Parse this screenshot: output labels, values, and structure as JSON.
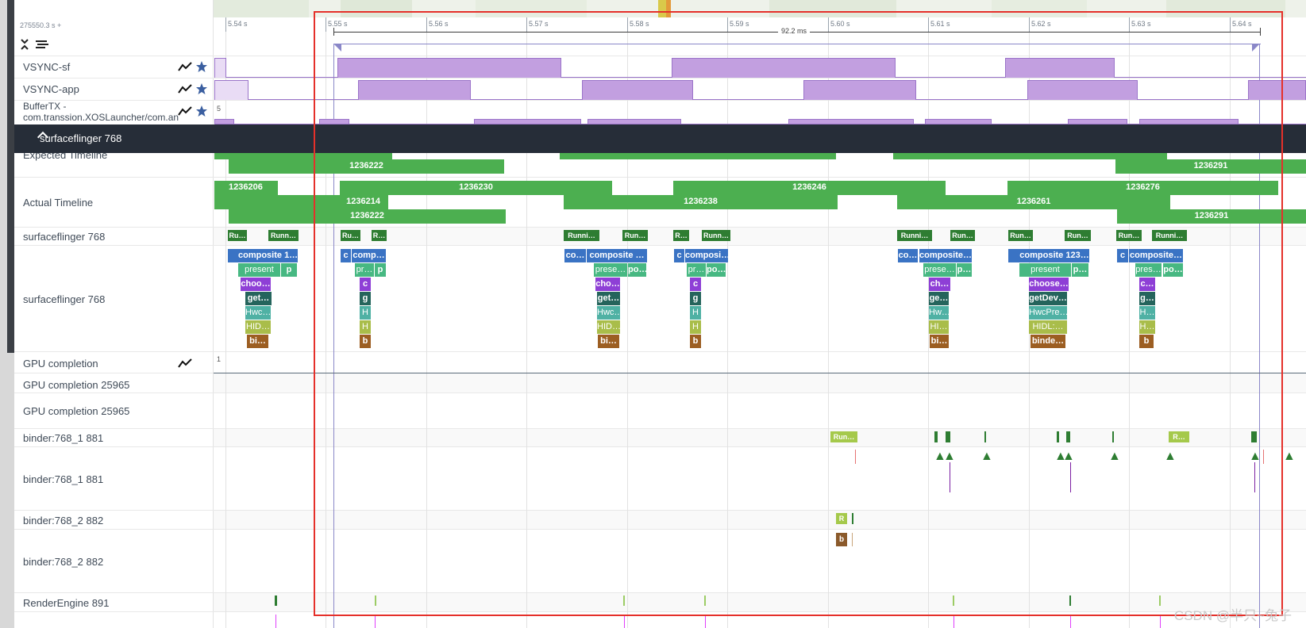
{
  "window": {
    "start_offset": "275550.3 s +",
    "selection_duration": "92.2 ms",
    "watermark": "CSDN @半只~兔子"
  },
  "timeline": {
    "ticks": [
      "5.54 s",
      "5.55 s",
      "5.56 s",
      "5.57 s",
      "5.58 s",
      "5.59 s",
      "5.60 s",
      "5.61 s",
      "5.62 s",
      "5.63 s",
      "5.64 s"
    ]
  },
  "colors": {
    "vsync": "#c29fe0",
    "frame_green": "#4caf50",
    "running_green": "#2e7d32",
    "selection_red": "#e5302a",
    "group_header": "#262d38"
  },
  "icons": {
    "collapse_all": "collapse-all-icon",
    "expand_lines": "lines-icon",
    "chart": "chart-line-icon",
    "pin": "star-icon",
    "group_toggle": "chevron-up-icon"
  },
  "tracks": {
    "vsync_sf": {
      "label": "VSYNC-sf",
      "counter_value": "1"
    },
    "vsync_app": {
      "label": "VSYNC-app",
      "counter_value": "1"
    },
    "buffer_tx": {
      "label_line1": "BufferTX -",
      "label_line2": "com.transsion.XOSLauncher/com.an",
      "counter_value": "5"
    },
    "group": {
      "label": "surfaceflinger 768"
    },
    "expected": {
      "label": "Expected Timeline",
      "frames": [
        "1236222",
        "1236291"
      ]
    },
    "actual": {
      "label": "Actual Timeline",
      "frames": [
        "1236206",
        "1236214",
        "1236222",
        "1236230",
        "1236238",
        "1236246",
        "1236261",
        "1236276",
        "1236291"
      ]
    },
    "sf_state": {
      "label": "surfaceflinger 768",
      "slices": [
        "Ru…",
        "Runn…",
        "Ru…",
        "R…",
        "Runni…",
        "Run…",
        "R…",
        "Runn…",
        "Runni…",
        "Run…",
        "Run…",
        "Run…",
        "Run…",
        "Runni…"
      ]
    },
    "sf_thread": {
      "label": "surfaceflinger 768",
      "stacks": [
        [
          "composite 1…",
          "present",
          "choo…",
          "get…",
          "Hwc…",
          "HID…",
          "bi…"
        ],
        [
          "comp…",
          "pr…",
          "c",
          "g",
          "H",
          "H",
          "b"
        ],
        [
          "composite …",
          "prese…",
          "cho…",
          "get…",
          "Hwc…",
          "HID…",
          "bi…"
        ],
        [
          "composi…",
          "pr…",
          "c",
          "g",
          "H",
          "H",
          "b"
        ],
        [
          "composite…",
          "prese…",
          "ch…",
          "ge…",
          "Hw…",
          "HI…",
          "bi…"
        ],
        [
          "composite 123…",
          "present",
          "choose…",
          "getDev…",
          "HwcPre…",
          "HIDL:…",
          "binde…"
        ],
        [
          "composite…",
          "pres…",
          "c…",
          "g…",
          "H…",
          "H…",
          "b"
        ]
      ],
      "small_labels": [
        "p",
        "c",
        "p",
        "co…",
        "po…",
        "c",
        "po…",
        "co…",
        "p…",
        "p…",
        "c",
        "po…"
      ]
    },
    "gpu_completion": {
      "label": "GPU completion",
      "counter_value": "1"
    },
    "gpu_completion_1": {
      "label": "GPU completion 25965"
    },
    "gpu_completion_2": {
      "label": "GPU completion 25965"
    },
    "binder1_state": {
      "label": "binder:768_1 881",
      "slices": [
        "Run…",
        "R…"
      ]
    },
    "binder1_thread": {
      "label": "binder:768_1 881"
    },
    "binder2_state": {
      "label": "binder:768_2 882",
      "slices": [
        "R"
      ]
    },
    "binder2_thread": {
      "label": "binder:768_2 882",
      "slices": [
        "b"
      ]
    },
    "render_engine": {
      "label": "RenderEngine 891"
    }
  }
}
